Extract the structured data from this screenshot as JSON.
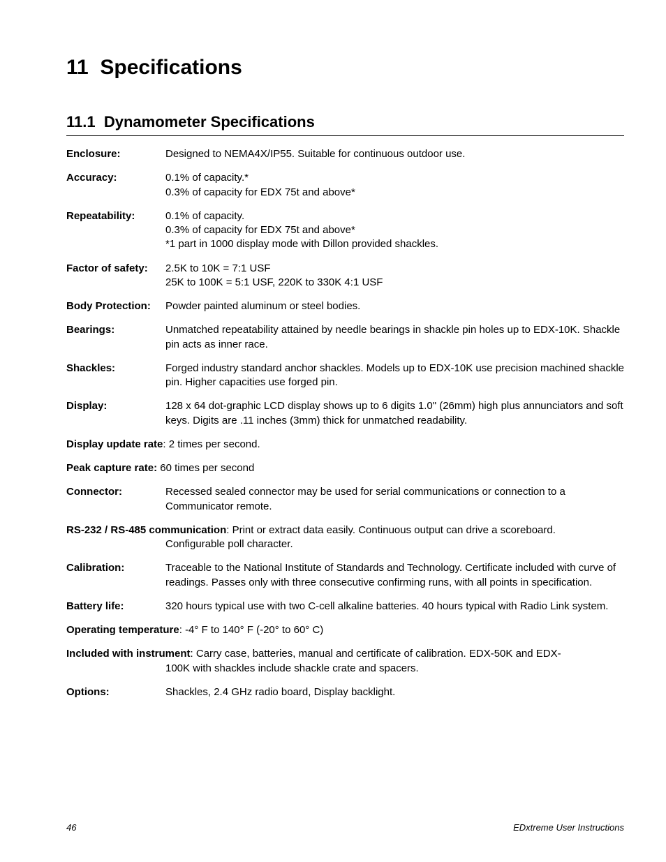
{
  "chapter": {
    "number": "11",
    "title": "Specifications"
  },
  "section": {
    "number": "11.1",
    "title": "Dynamometer Specifications"
  },
  "specs": {
    "enclosure": {
      "label": "Enclosure",
      "value": "Designed to NEMA4X/IP55. Suitable for continuous outdoor use."
    },
    "accuracy": {
      "label": "Accuracy",
      "value": "0.1% of capacity.*\n0.3% of capacity for EDX 75t and above*"
    },
    "repeatability": {
      "label": "Repeatability",
      "value": "0.1% of capacity.\n0.3% of capacity for EDX 75t and above*\n*1 part in 1000 display mode with Dillon provided shackles."
    },
    "factor_of_safety": {
      "label": "Factor of safety",
      "value": "2.5K to 10K = 7:1 USF\n25K to 100K = 5:1 USF, 220K to 330K 4:1 USF"
    },
    "body_protection": {
      "label": "Body Protection",
      "value": "Powder painted aluminum or steel bodies."
    },
    "bearings": {
      "label": "Bearings",
      "value": "Unmatched repeatability attained by needle bearings in shackle pin holes up to EDX-10K. Shackle pin acts as inner race."
    },
    "shackles": {
      "label": "Shackles",
      "value": "Forged industry standard anchor shackles. Models up to EDX-10K use precision machined shackle pin. Higher capacities use forged pin."
    },
    "display": {
      "label": "Display",
      "value": "128 x 64 dot-graphic LCD display shows up to 6 digits 1.0\" (26mm) high plus annunciators and soft keys. Digits are .11 inches (3mm) thick for unmatched readability."
    },
    "display_update_rate": {
      "label": "Display update rate",
      "value": "2 times per second."
    },
    "peak_capture_rate": {
      "label": "Peak capture rate:",
      "value": "60 times per second"
    },
    "connector": {
      "label": "Connector",
      "value": "Recessed sealed connector may be used for serial communications or connection to a Communicator remote."
    },
    "rs232": {
      "label": "RS-232 / RS-485 communication",
      "line1": "Print or extract data easily. Continuous output can drive a scoreboard.",
      "line2": "Configurable poll character."
    },
    "calibration": {
      "label": "Calibration",
      "value": "Traceable to the National Institute of Standards and Technology. Certificate included with curve of readings. Passes only with three consecutive confirming runs, with all points in specification."
    },
    "battery_life": {
      "label": "Battery life",
      "value": "320 hours typical use with two C-cell alkaline batteries. 40 hours typical with Radio Link system."
    },
    "operating_temperature": {
      "label": "Operating temperature",
      "value": "-4° F to 140° F (-20° to 60° C)"
    },
    "included": {
      "label": "Included with instrument",
      "line1": "Carry case, batteries, manual and certificate of calibration. EDX-50K and EDX-",
      "line2": "100K with shackles include shackle crate and spacers."
    },
    "options": {
      "label": "Options",
      "value": "Shackles, 2.4 GHz radio board, Display backlight."
    }
  },
  "footer": {
    "page_number": "46",
    "doc_title": "EDxtreme User Instructions"
  }
}
